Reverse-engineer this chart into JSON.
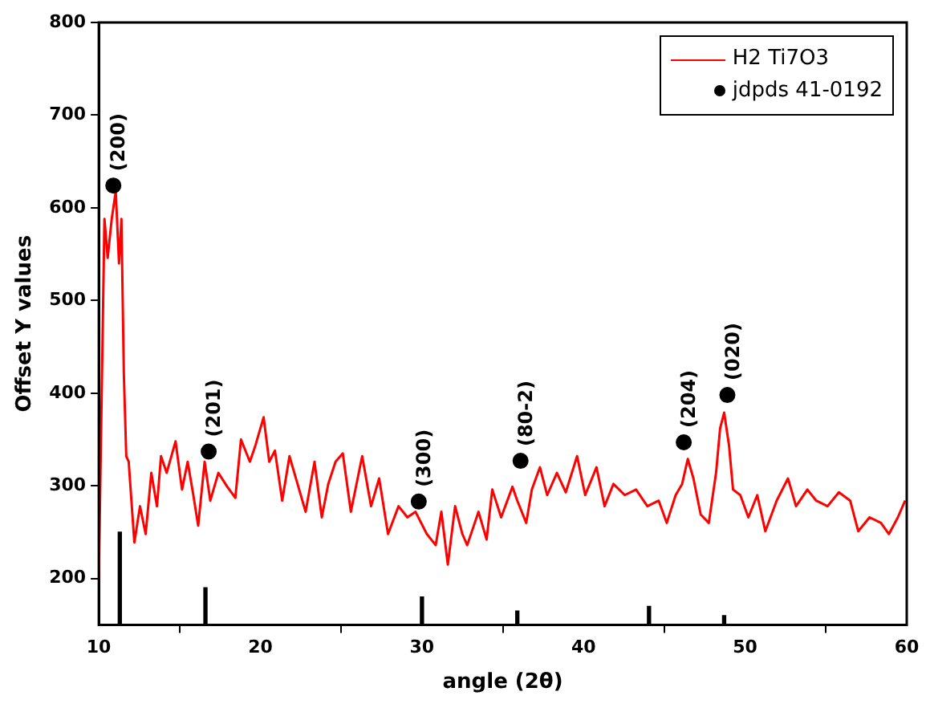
{
  "chart_data": {
    "type": "line",
    "xlabel": "angle (2θ)",
    "ylabel": "Offset Y values",
    "xlim": [
      10,
      60
    ],
    "xticks": [
      10,
      20,
      30,
      40,
      50,
      60
    ],
    "ylim": [
      150,
      800
    ],
    "yticks": [
      200,
      300,
      400,
      500,
      600,
      700,
      800
    ],
    "grid": false,
    "legend": "top right",
    "series": [
      {
        "name": "H2 Ti7O3",
        "color": "#ff0000",
        "marker": "none",
        "x": [
          10,
          10.2,
          10.35,
          10.55,
          10.8,
          11.05,
          11.25,
          11.4,
          11.55,
          11.7,
          11.85,
          12.2,
          12.55,
          12.9,
          13.25,
          13.6,
          13.85,
          14.2,
          14.75,
          15.15,
          15.5,
          15.85,
          16.15,
          16.55,
          16.9,
          17.4,
          17.95,
          18.45,
          18.8,
          19.35,
          19.7,
          20.2,
          20.55,
          20.9,
          21.35,
          21.8,
          22.3,
          22.8,
          23.35,
          23.8,
          24.2,
          24.65,
          25.1,
          25.6,
          26.3,
          26.85,
          27.35,
          27.9,
          28.55,
          29.1,
          29.6,
          30.3,
          30.85,
          31.2,
          31.6,
          32.05,
          32.5,
          32.8,
          33.5,
          34.0,
          34.35,
          34.9,
          35.6,
          35.9,
          36.45,
          36.8,
          37.3,
          37.75,
          38.35,
          38.9,
          39.6,
          40.1,
          40.8,
          41.3,
          41.85,
          42.55,
          43.25,
          43.95,
          44.65,
          45.15,
          45.7,
          46.1,
          46.45,
          46.8,
          47.25,
          47.75,
          48.2,
          48.45,
          48.7,
          49.0,
          49.25,
          49.7,
          50.2,
          50.75,
          51.25,
          51.95,
          52.65,
          53.15,
          53.85,
          54.4,
          55.1,
          55.8,
          56.5,
          57.0,
          57.7,
          58.4,
          58.9,
          59.45,
          59.9
        ],
        "values": [
          200,
          421,
          588,
          546,
          588,
          618,
          540,
          588,
          421,
          332,
          326,
          239,
          278,
          248,
          314,
          278,
          332,
          314,
          348,
          296,
          326,
          290,
          257,
          326,
          284,
          314,
          299,
          287,
          350,
          326,
          344,
          374,
          326,
          338,
          284,
          332,
          302,
          272,
          326,
          266,
          302,
          326,
          335,
          272,
          332,
          278,
          308,
          248,
          278,
          266,
          272,
          248,
          236,
          272,
          215,
          278,
          248,
          236,
          272,
          242,
          296,
          266,
          299,
          284,
          260,
          296,
          320,
          290,
          314,
          293,
          332,
          290,
          320,
          278,
          302,
          290,
          296,
          278,
          284,
          260,
          290,
          302,
          329,
          308,
          269,
          260,
          314,
          362,
          379,
          344,
          296,
          290,
          266,
          290,
          251,
          284,
          308,
          278,
          296,
          284,
          278,
          293,
          284,
          251,
          266,
          260,
          248,
          266,
          284
        ]
      },
      {
        "name": "jdpds 41-0192",
        "type": "scatter",
        "color": "#000000",
        "marker": "circle",
        "x": [
          10.9,
          16.8,
          29.8,
          36.1,
          46.2,
          48.9
        ],
        "values": [
          624,
          337,
          283,
          327,
          347,
          398
        ]
      },
      {
        "type": "bar",
        "color": "#000000",
        "x": [
          11.3,
          16.6,
          30.0,
          35.9,
          44.05,
          48.7
        ],
        "values": [
          250,
          190,
          180,
          165,
          170,
          160
        ]
      }
    ],
    "annotations": [
      {
        "text": "(200)",
        "x": 10.9,
        "y": 624
      },
      {
        "text": "(201)",
        "x": 16.8,
        "y": 337
      },
      {
        "text": "(300)",
        "x": 29.8,
        "y": 283
      },
      {
        "text": "(80-2)",
        "x": 36.1,
        "y": 327
      },
      {
        "text": "(204)",
        "x": 46.2,
        "y": 347
      },
      {
        "text": "(020)",
        "x": 48.9,
        "y": 398
      }
    ]
  }
}
